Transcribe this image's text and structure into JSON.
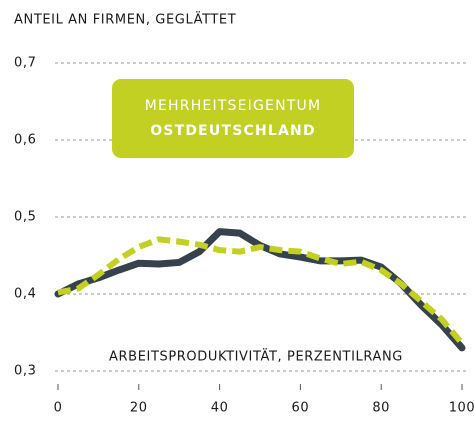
{
  "chart_data": {
    "type": "line",
    "title": "ANTEIL AN FIRMEN, GEGLÄTTET",
    "x_label": "ARBEITSPRODUKTIVITÄT, PERZENTILRANG",
    "annotation": {
      "line1": "MEHRHEITSEIGENTUM",
      "line2": "OSTDEUTSCHLAND",
      "color": "#c2d024"
    },
    "x": [
      0,
      5,
      10,
      15,
      20,
      25,
      30,
      35,
      40,
      45,
      50,
      55,
      60,
      65,
      70,
      75,
      80,
      85,
      90,
      95,
      100
    ],
    "series": [
      {
        "color": "#37424c",
        "dashed": false,
        "values": [
          0.4,
          0.413,
          0.421,
          0.431,
          0.44,
          0.439,
          0.441,
          0.455,
          0.481,
          0.479,
          0.463,
          0.452,
          0.448,
          0.443,
          0.443,
          0.444,
          0.435,
          0.413,
          0.385,
          0.36,
          0.33
        ]
      },
      {
        "color": "#c2d024",
        "dashed": true,
        "values": [
          0.402,
          0.407,
          0.425,
          0.445,
          0.461,
          0.471,
          0.468,
          0.464,
          0.457,
          0.455,
          0.461,
          0.457,
          0.455,
          0.446,
          0.439,
          0.442,
          0.431,
          0.413,
          0.39,
          0.367,
          0.336
        ]
      }
    ],
    "xlim": [
      0,
      100
    ],
    "xticks": [
      0,
      20,
      40,
      60,
      80,
      100
    ],
    "ylim": [
      0.3,
      0.7
    ],
    "yticks": [
      {
        "value": 0.3,
        "label": "0,3"
      },
      {
        "value": 0.4,
        "label": "0,4"
      },
      {
        "value": 0.5,
        "label": "0,5"
      },
      {
        "value": 0.6,
        "label": "0,6"
      },
      {
        "value": 0.7,
        "label": "0,7"
      }
    ],
    "grid": true
  }
}
